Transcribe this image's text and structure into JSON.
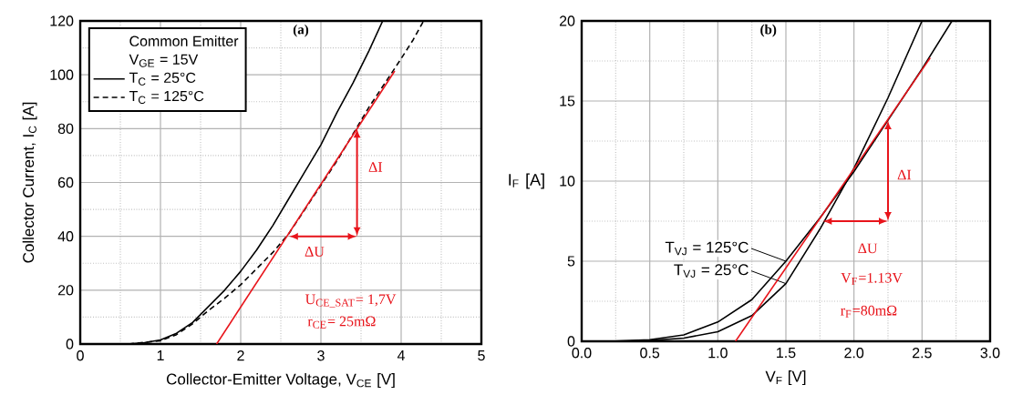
{
  "chart_data": [
    {
      "type": "line",
      "title": "(a)",
      "xlabel": "Collector-Emitter Voltage, V$_{CE}$ [V]",
      "ylabel": "Collector Current, I$_{C}$ [A]",
      "legend_title": "Common Emitter",
      "legend": "top left",
      "grid": true,
      "marker": "none",
      "xlim": [
        0,
        5
      ],
      "ylim": [
        0,
        120
      ],
      "xticks": [
        0,
        1,
        2,
        3,
        4,
        5
      ],
      "yticks": [
        0,
        20,
        40,
        60,
        80,
        100,
        120
      ],
      "annotations": [
        "V$_{GE}$ = 15V",
        "ΔI",
        "ΔU",
        "U$_{CE_SAT}$= 1,7V",
        "r$_{CE}$= 25mΩ"
      ],
      "series": [
        {
          "name": "T$_{C}$ =   25°C",
          "color": "#000000",
          "line_style": "solid",
          "x": [
            0.6,
            0.8,
            1.0,
            1.2,
            1.4,
            1.6,
            1.8,
            2.0,
            2.2,
            2.4,
            2.6,
            2.8,
            3.0,
            3.2,
            3.4,
            3.6,
            3.77
          ],
          "values": [
            0,
            0.5,
            1.5,
            4,
            8,
            14,
            20,
            27,
            35,
            44,
            54,
            64,
            74,
            86,
            97,
            109,
            120
          ]
        },
        {
          "name": "T$_{C}$ = 125°C",
          "color": "#000000",
          "line_style": "dashed",
          "x": [
            0.6,
            1.0,
            1.2,
            1.4,
            1.6,
            1.8,
            2.0,
            2.2,
            2.4,
            2.6,
            2.8,
            3.0,
            3.2,
            3.4,
            3.6,
            3.8,
            4.0,
            4.15,
            4.28
          ],
          "values": [
            0,
            1.2,
            3.5,
            7.5,
            12.5,
            17,
            22,
            28,
            34,
            41,
            50,
            59,
            68,
            78,
            88,
            97,
            106,
            113,
            120
          ]
        },
        {
          "color": "#e8141b",
          "line_style": "solid",
          "x": [
            1.7,
            3.92
          ],
          "values": [
            0,
            101.4
          ]
        }
      ]
    },
    {
      "type": "line",
      "title": "(b)",
      "xlabel": "V$_{F}$  [V]",
      "ylabel": "I$_{F}$ [A]",
      "legend": "left",
      "grid": true,
      "marker": "none",
      "xlim": [
        0,
        3
      ],
      "ylim": [
        0,
        20
      ],
      "xticks": [
        {
          "value": 0,
          "label": "0.0"
        },
        0.5,
        {
          "value": 1,
          "label": "1.0"
        },
        1.5,
        {
          "value": 2,
          "label": "2.0"
        },
        2.5,
        {
          "value": 3,
          "label": "3.0"
        }
      ],
      "yticks": [
        0,
        5,
        10,
        15,
        20
      ],
      "annotations": [
        "ΔI",
        "ΔU",
        "V$_{F}$=1.13V",
        "r$_{F}$=80mΩ"
      ],
      "series": [
        {
          "name": "T$_{VJ}$ = 125°C",
          "color": "#000000",
          "line_style": "solid",
          "x": [
            0.2,
            0.5,
            0.75,
            1.0,
            1.25,
            1.5,
            1.75,
            2.0,
            2.25,
            2.5,
            2.72
          ],
          "values": [
            0,
            0.1,
            0.4,
            1.2,
            2.6,
            5,
            7.7,
            10.6,
            13.8,
            17,
            20
          ]
        },
        {
          "name": "T$_{VJ}$ =   25°C",
          "color": "#000000",
          "line_style": "solid",
          "x": [
            0.3,
            0.5,
            0.75,
            1.0,
            1.25,
            1.5,
            1.75,
            2.0,
            2.25,
            2.5
          ],
          "values": [
            0,
            0.05,
            0.2,
            0.6,
            1.6,
            3.6,
            7,
            10.8,
            15.2,
            20
          ]
        },
        {
          "color": "#e8141b",
          "line_style": "solid",
          "x": [
            1.13,
            2.56
          ],
          "values": [
            0,
            17.7
          ]
        }
      ]
    }
  ]
}
